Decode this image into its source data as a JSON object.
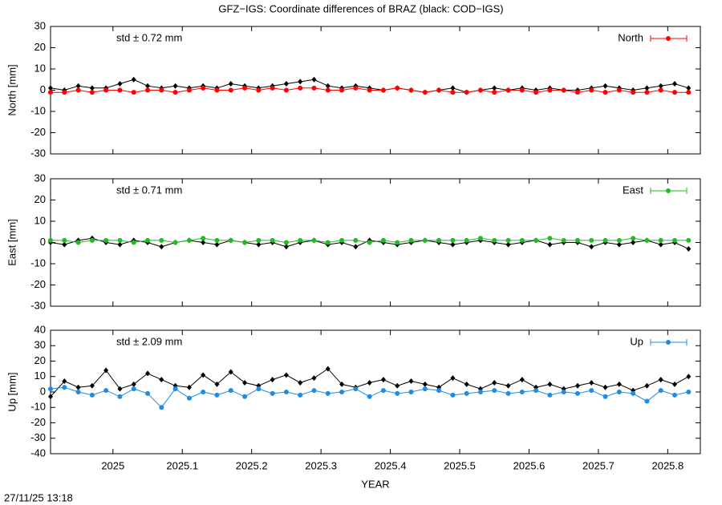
{
  "title": "GFZ−IGS: Coordinate differences of BRAZ (black: COD−IGS)",
  "footer": "27/11/25 13:18",
  "chart_data": [
    {
      "type": "line",
      "ylabel": "North [mm]",
      "annotation": "std ± 0.72 mm",
      "legend": "top-right",
      "grid": false,
      "xlim": [
        2024.91,
        2025.847
      ],
      "ylim": [
        -30,
        30
      ],
      "yticks": [
        -30,
        -20,
        -10,
        0,
        10,
        20,
        30
      ],
      "x": [
        2024.91,
        2024.93,
        2024.95,
        2024.97,
        2024.99,
        2025.01,
        2025.03,
        2025.05,
        2025.07,
        2025.09,
        2025.11,
        2025.13,
        2025.15,
        2025.17,
        2025.19,
        2025.21,
        2025.23,
        2025.25,
        2025.27,
        2025.29,
        2025.31,
        2025.33,
        2025.35,
        2025.37,
        2025.39,
        2025.41,
        2025.43,
        2025.45,
        2025.47,
        2025.49,
        2025.51,
        2025.53,
        2025.55,
        2025.57,
        2025.59,
        2025.61,
        2025.63,
        2025.65,
        2025.67,
        2025.69,
        2025.71,
        2025.73,
        2025.75,
        2025.77,
        2025.79,
        2025.81,
        2025.83
      ],
      "series": [
        {
          "color": "#000000",
          "values": [
            1,
            0,
            2,
            1,
            1,
            3,
            5,
            2,
            1,
            2,
            1,
            2,
            1,
            3,
            2,
            1,
            2,
            3,
            4,
            5,
            2,
            1,
            2,
            1,
            0,
            1,
            0,
            -1,
            0,
            1,
            -1,
            0,
            1,
            0,
            1,
            0,
            1,
            0,
            0,
            1,
            2,
            1,
            0,
            1,
            2,
            3,
            1
          ]
        },
        {
          "name": "North",
          "color": "#ff0000",
          "values": [
            -1,
            -1,
            0,
            -1,
            0,
            0,
            -1,
            0,
            0,
            -1,
            0,
            1,
            0,
            0,
            1,
            0,
            1,
            0,
            1,
            1,
            0,
            0,
            1,
            0,
            0,
            1,
            0,
            -1,
            0,
            -1,
            -1,
            0,
            -1,
            0,
            0,
            -1,
            0,
            0,
            -1,
            0,
            -1,
            0,
            -1,
            -1,
            0,
            -1,
            -1
          ]
        }
      ]
    },
    {
      "type": "line",
      "ylabel": "East [mm]",
      "annotation": "std ± 0.71 mm",
      "legend": "top-right",
      "grid": false,
      "xlim": [
        2024.91,
        2025.847
      ],
      "ylim": [
        -30,
        30
      ],
      "yticks": [
        -30,
        -20,
        -10,
        0,
        10,
        20,
        30
      ],
      "x": [
        2024.91,
        2024.93,
        2024.95,
        2024.97,
        2024.99,
        2025.01,
        2025.03,
        2025.05,
        2025.07,
        2025.09,
        2025.11,
        2025.13,
        2025.15,
        2025.17,
        2025.19,
        2025.21,
        2025.23,
        2025.25,
        2025.27,
        2025.29,
        2025.31,
        2025.33,
        2025.35,
        2025.37,
        2025.39,
        2025.41,
        2025.43,
        2025.45,
        2025.47,
        2025.49,
        2025.51,
        2025.53,
        2025.55,
        2025.57,
        2025.59,
        2025.61,
        2025.63,
        2025.65,
        2025.67,
        2025.69,
        2025.71,
        2025.73,
        2025.75,
        2025.77,
        2025.79,
        2025.81,
        2025.83
      ],
      "series": [
        {
          "color": "#000000",
          "values": [
            0,
            -1,
            1,
            2,
            0,
            -1,
            1,
            0,
            -2,
            0,
            1,
            0,
            -1,
            1,
            0,
            -1,
            0,
            -2,
            0,
            1,
            -1,
            0,
            -2,
            1,
            0,
            -1,
            0,
            1,
            0,
            -1,
            0,
            1,
            0,
            -1,
            0,
            1,
            -1,
            0,
            0,
            -2,
            0,
            -1,
            0,
            1,
            -1,
            0,
            -3
          ]
        },
        {
          "name": "East",
          "color": "#22bb22",
          "values": [
            1,
            1,
            0,
            1,
            1,
            1,
            0,
            1,
            1,
            0,
            1,
            2,
            1,
            1,
            0,
            1,
            1,
            0,
            1,
            1,
            0,
            1,
            1,
            0,
            1,
            0,
            1,
            1,
            1,
            1,
            1,
            2,
            1,
            1,
            1,
            1,
            2,
            1,
            1,
            1,
            1,
            1,
            2,
            1,
            1,
            1,
            1
          ]
        }
      ]
    },
    {
      "type": "line",
      "ylabel": "Up [mm]",
      "annotation": "std ± 2.09 mm",
      "legend": "top-right",
      "grid": false,
      "xlabel": "YEAR",
      "xlim": [
        2024.91,
        2025.847
      ],
      "ylim": [
        -40,
        40
      ],
      "yticks": [
        -40,
        -30,
        -20,
        -10,
        0,
        10,
        20,
        30,
        40
      ],
      "xticks": [
        2025,
        2025.1,
        2025.2,
        2025.3,
        2025.4,
        2025.5,
        2025.6,
        2025.7,
        2025.8
      ],
      "x": [
        2024.91,
        2024.93,
        2024.95,
        2024.97,
        2024.99,
        2025.01,
        2025.03,
        2025.05,
        2025.07,
        2025.09,
        2025.11,
        2025.13,
        2025.15,
        2025.17,
        2025.19,
        2025.21,
        2025.23,
        2025.25,
        2025.27,
        2025.29,
        2025.31,
        2025.33,
        2025.35,
        2025.37,
        2025.39,
        2025.41,
        2025.43,
        2025.45,
        2025.47,
        2025.49,
        2025.51,
        2025.53,
        2025.55,
        2025.57,
        2025.59,
        2025.61,
        2025.63,
        2025.65,
        2025.67,
        2025.69,
        2025.71,
        2025.73,
        2025.75,
        2025.77,
        2025.79,
        2025.81,
        2025.83
      ],
      "series": [
        {
          "color": "#000000",
          "values": [
            -3,
            7,
            3,
            4,
            14,
            2,
            5,
            12,
            8,
            4,
            3,
            11,
            5,
            13,
            6,
            4,
            8,
            11,
            6,
            9,
            15,
            5,
            3,
            6,
            8,
            4,
            7,
            5,
            3,
            9,
            5,
            2,
            6,
            4,
            8,
            3,
            5,
            2,
            4,
            6,
            3,
            5,
            1,
            4,
            8,
            5,
            10
          ]
        },
        {
          "name": "Up",
          "color": "#1e8ce6",
          "values": [
            2,
            3,
            0,
            -2,
            1,
            -3,
            2,
            -1,
            -10,
            2,
            -4,
            0,
            -2,
            1,
            -3,
            2,
            -1,
            0,
            -2,
            1,
            -1,
            0,
            2,
            -3,
            1,
            -1,
            0,
            2,
            1,
            -2,
            -1,
            0,
            1,
            -1,
            0,
            1,
            -2,
            0,
            -1,
            1,
            -3,
            0,
            -1,
            -6,
            1,
            -2,
            0
          ]
        }
      ]
    }
  ]
}
